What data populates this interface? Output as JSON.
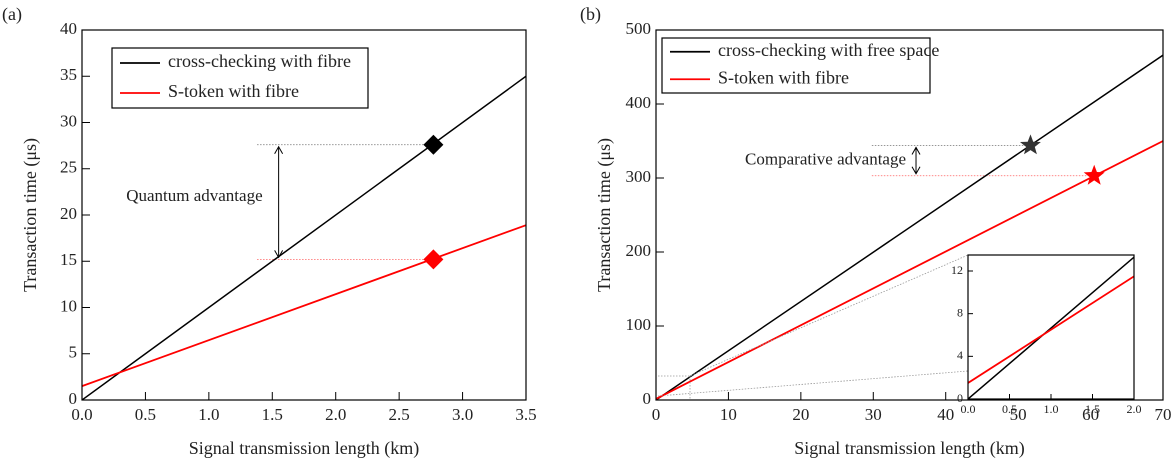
{
  "chart_data": [
    {
      "type": "line",
      "panel_label": "(a)",
      "xlabel": "Signal transmission length (km)",
      "ylabel": "Transaction time (μs)",
      "xlim": [
        0,
        3.5
      ],
      "ylim": [
        0,
        40
      ],
      "xticks": [
        {
          "value": 0,
          "label": "0.0"
        },
        {
          "value": 0.5,
          "label": "0.5"
        },
        {
          "value": 1,
          "label": "1.0"
        },
        {
          "value": 1.5,
          "label": "1.5"
        },
        {
          "value": 2,
          "label": "2.0"
        },
        {
          "value": 2.5,
          "label": "2.5"
        },
        {
          "value": 3,
          "label": "3.0"
        },
        {
          "value": 3.5,
          "label": "3.5"
        }
      ],
      "yticks": [
        0,
        5,
        10,
        15,
        20,
        25,
        30,
        35,
        40
      ],
      "series": [
        {
          "name": "cross-checking with fibre",
          "color": "#000000",
          "x": [
            0,
            3.5
          ],
          "values": [
            0,
            35
          ]
        },
        {
          "name": "S-token with fibre",
          "color": "#ff0000",
          "x": [
            0,
            3.5
          ],
          "values": [
            1.5,
            18.9
          ]
        }
      ],
      "markers": [
        {
          "shape": "diamond",
          "color": "#000000",
          "x": 2.77,
          "y": 27.6
        },
        {
          "shape": "diamond",
          "color": "#ff0000",
          "x": 2.77,
          "y": 15.2
        }
      ],
      "annotation": {
        "text": "Quantum advantage",
        "x": 1.55,
        "x_start": 1.38
      }
    },
    {
      "type": "line",
      "panel_label": "(b)",
      "xlabel": "Signal transmission length (km)",
      "ylabel": "Transaction time (μs)",
      "xlim": [
        0,
        70
      ],
      "ylim": [
        0,
        500
      ],
      "xticks": [
        0,
        10,
        20,
        30,
        40,
        50,
        60,
        70
      ],
      "yticks": [
        0,
        100,
        200,
        300,
        400,
        500
      ],
      "series": [
        {
          "name": "cross-checking with free space",
          "color": "#000000",
          "x": [
            0,
            70
          ],
          "values": [
            0,
            466
          ]
        },
        {
          "name": "S-token with fibre",
          "color": "#ff0000",
          "x": [
            0,
            70
          ],
          "values": [
            1.5,
            350
          ]
        }
      ],
      "markers": [
        {
          "shape": "star",
          "color": "#333333",
          "x": 51.7,
          "y": 344
        },
        {
          "shape": "star",
          "color": "#ff0000",
          "x": 60.5,
          "y": 303
        }
      ],
      "annotation": {
        "text": "Comparative advantage",
        "x": 35.9,
        "x_start": 29.8
      }
    },
    {
      "type": "line",
      "xlim": [
        0,
        2
      ],
      "ylim": [
        0,
        13.5
      ],
      "xticks": [
        {
          "value": 0,
          "label": "0.0"
        },
        {
          "value": 0.5,
          "label": "0.5"
        },
        {
          "value": 1,
          "label": "1.0"
        },
        {
          "value": 1.5,
          "label": "1.5"
        },
        {
          "value": 2,
          "label": "2.0"
        }
      ],
      "yticks": [
        0,
        4,
        8,
        12
      ],
      "series": [
        {
          "color": "#000000",
          "x": [
            0,
            2
          ],
          "values": [
            0,
            13.3
          ]
        },
        {
          "color": "#ff0000",
          "x": [
            0,
            2
          ],
          "values": [
            1.5,
            11.5
          ]
        }
      ]
    }
  ]
}
